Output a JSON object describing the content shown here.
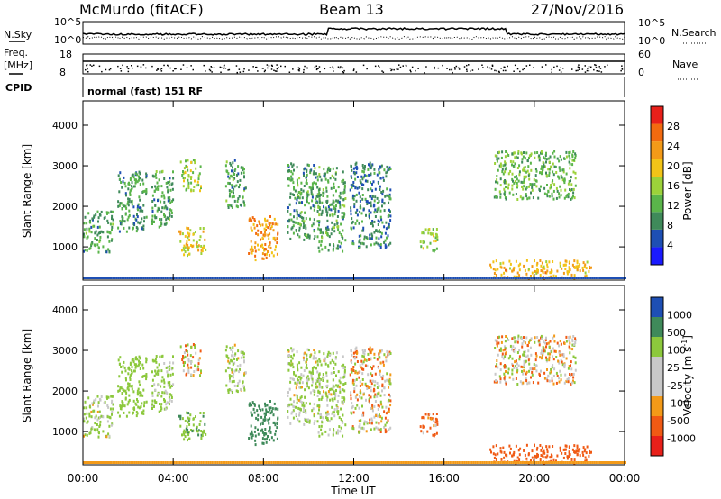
{
  "header": {
    "station": "McMurdo (fitACF)",
    "beam": "Beam 13",
    "date": "27/Nov/2016"
  },
  "noise_panel": {
    "left_label": "N.Sky",
    "right_label": "N.Search",
    "left_ticks": [
      "10^5",
      "10^0"
    ],
    "right_ticks": [
      "10^5",
      "10^0"
    ]
  },
  "freq_panel": {
    "left_label_1": "Freq.",
    "left_label_2": "[MHz]",
    "right_label": "Nave",
    "left_ticks": [
      "18",
      "8"
    ],
    "right_ticks": [
      "60",
      "0"
    ]
  },
  "cpid": {
    "label": "CPID",
    "mode": "normal (fast) 151 RF"
  },
  "x_axis": {
    "title": "Time UT",
    "ticks": [
      "00:00",
      "04:00",
      "08:00",
      "12:00",
      "16:00",
      "20:00",
      "00:00"
    ]
  },
  "colors": {
    "power_scale": [
      "#1a1aff",
      "#1e4fb4",
      "#3f8a5a",
      "#5ab54a",
      "#9cd23a",
      "#f2c418",
      "#f39a18",
      "#f26a10",
      "#e8201a"
    ],
    "velocity_scale": [
      "#e8201a",
      "#f05a14",
      "#f39a18",
      "#c8c8c8",
      "#c8c8c8",
      "#8cc83c",
      "#3f8a5a",
      "#1e4fb4"
    ]
  },
  "chart_data": [
    {
      "type": "heatmap",
      "title": "Power",
      "xlabel": "Time UT",
      "ylabel": "Slant Range [km]",
      "xlim": [
        0,
        24
      ],
      "ylim": [
        180,
        4600
      ],
      "y_ticks": [
        "1000",
        "2000",
        "3000",
        "4000"
      ],
      "colorbar": {
        "label": "Power [dB]",
        "range": [
          0,
          30
        ],
        "ticks": [
          "4",
          "8",
          "12",
          "16",
          "20",
          "24",
          "28"
        ]
      },
      "echo_regions": [
        {
          "t": [
            0.0,
            1.3
          ],
          "r": [
            900,
            1900
          ],
          "value": 10
        },
        {
          "t": [
            1.5,
            2.8
          ],
          "r": [
            1400,
            2900
          ],
          "value": 9
        },
        {
          "t": [
            3.0,
            4.0
          ],
          "r": [
            1500,
            2900
          ],
          "value": 10
        },
        {
          "t": [
            4.2,
            5.4
          ],
          "r": [
            800,
            1500
          ],
          "value": 18
        },
        {
          "t": [
            4.3,
            5.2
          ],
          "r": [
            2400,
            3200
          ],
          "value": 14
        },
        {
          "t": [
            6.3,
            7.2
          ],
          "r": [
            2000,
            3200
          ],
          "value": 10
        },
        {
          "t": [
            7.3,
            8.6
          ],
          "r": [
            700,
            1800
          ],
          "value": 22
        },
        {
          "t": [
            9.0,
            10.4
          ],
          "r": [
            1200,
            3100
          ],
          "value": 10
        },
        {
          "t": [
            10.4,
            11.6
          ],
          "r": [
            900,
            3000
          ],
          "value": 10
        },
        {
          "t": [
            11.8,
            13.6
          ],
          "r": [
            1000,
            3100
          ],
          "value": 8
        },
        {
          "t": [
            14.9,
            15.7
          ],
          "r": [
            900,
            1500
          ],
          "value": 14
        },
        {
          "t": [
            18.2,
            21.8
          ],
          "r": [
            2200,
            3400
          ],
          "value": 12
        },
        {
          "t": [
            18.0,
            22.5
          ],
          "r": [
            250,
            700
          ],
          "value": 20
        }
      ]
    },
    {
      "type": "heatmap",
      "title": "Velocity",
      "xlabel": "Time UT",
      "ylabel": "Slant Range [km]",
      "xlim": [
        0,
        24
      ],
      "ylim": [
        180,
        4600
      ],
      "y_ticks": [
        "1000",
        "2000",
        "3000",
        "4000"
      ],
      "colorbar": {
        "label": "Velocity [m s^-1]",
        "scale_points": [
          -1000,
          -500,
          -100,
          -25,
          25,
          100,
          500,
          1000
        ],
        "ticks": [
          "1000",
          "500",
          "100",
          "25",
          "-25",
          "-100",
          "-500",
          "-1000"
        ]
      },
      "echo_regions": [
        {
          "t": [
            0.0,
            1.3
          ],
          "r": [
            900,
            1900
          ],
          "value": 150
        },
        {
          "t": [
            1.5,
            2.8
          ],
          "r": [
            1400,
            2900
          ],
          "value": 300
        },
        {
          "t": [
            3.0,
            4.0
          ],
          "r": [
            1500,
            2900
          ],
          "value": 200
        },
        {
          "t": [
            4.2,
            5.4
          ],
          "r": [
            800,
            1500
          ],
          "value": 400
        },
        {
          "t": [
            4.3,
            5.2
          ],
          "r": [
            2400,
            3200
          ],
          "value": 0
        },
        {
          "t": [
            6.3,
            7.2
          ],
          "r": [
            2000,
            3200
          ],
          "value": 150
        },
        {
          "t": [
            7.3,
            8.6
          ],
          "r": [
            700,
            1800
          ],
          "value": 700
        },
        {
          "t": [
            9.0,
            10.4
          ],
          "r": [
            1200,
            3100
          ],
          "value": 150
        },
        {
          "t": [
            10.4,
            11.6
          ],
          "r": [
            900,
            3000
          ],
          "value": 150
        },
        {
          "t": [
            11.8,
            13.6
          ],
          "r": [
            1000,
            3100
          ],
          "value": 0
        },
        {
          "t": [
            14.9,
            15.7
          ],
          "r": [
            900,
            1500
          ],
          "value": -200
        },
        {
          "t": [
            18.2,
            21.8
          ],
          "r": [
            2200,
            3400
          ],
          "value": 0
        },
        {
          "t": [
            18.0,
            22.5
          ],
          "r": [
            250,
            700
          ],
          "value": -300
        }
      ]
    }
  ]
}
